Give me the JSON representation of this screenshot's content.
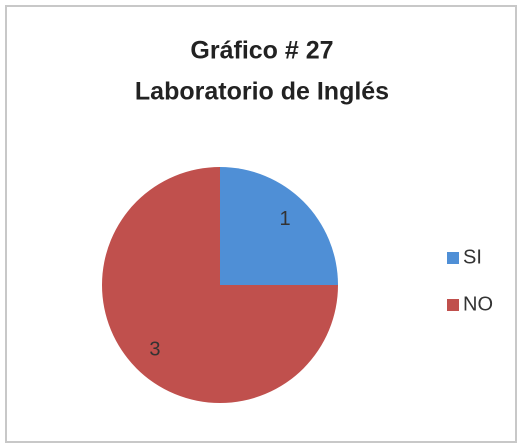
{
  "chart_data": {
    "type": "pie",
    "title": [
      "Gráfico # 27",
      "Laboratorio de Inglés"
    ],
    "categories": [
      "SI",
      "NO"
    ],
    "values": [
      1,
      3
    ],
    "colors": [
      "#4f8fd6",
      "#c0504d"
    ],
    "legend": "right"
  }
}
